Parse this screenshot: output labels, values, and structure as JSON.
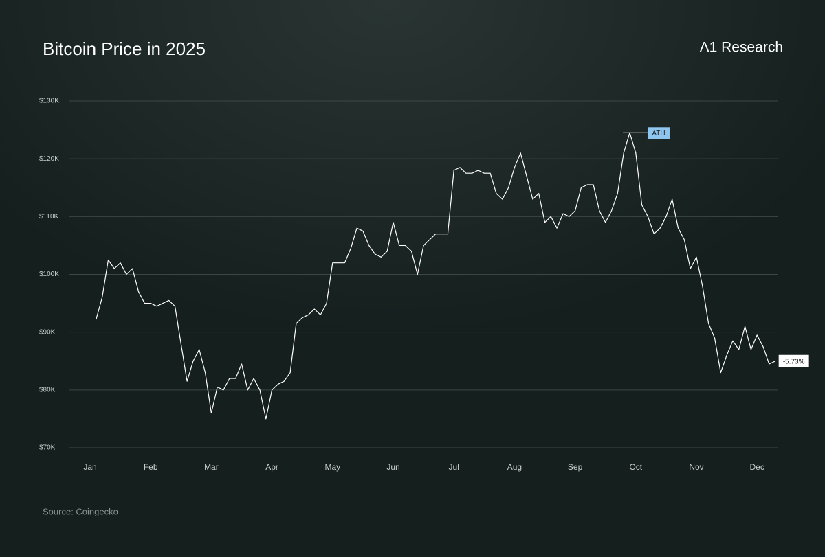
{
  "chart_data": {
    "type": "line",
    "title": "Bitcoin Price in 2025",
    "brand": "Λ1 Research",
    "source": "Source: Coingecko",
    "categories": [
      "Jan",
      null,
      null,
      null,
      null,
      null,
      null,
      null,
      null,
      null,
      "Feb",
      null,
      null,
      null,
      null,
      null,
      null,
      null,
      null,
      null,
      "Mar",
      null,
      null,
      null,
      null,
      null,
      null,
      null,
      null,
      null,
      "Apr",
      null,
      null,
      null,
      null,
      null,
      null,
      null,
      null,
      null,
      "May",
      null,
      null,
      null,
      null,
      null,
      null,
      null,
      null,
      null,
      "Jun",
      null,
      null,
      null,
      null,
      null,
      null,
      null,
      null,
      null,
      "Jul",
      null,
      null,
      null,
      null,
      null,
      null,
      null,
      null,
      null,
      "Aug",
      null,
      null,
      null,
      null,
      null,
      null,
      null,
      null,
      null,
      "Sep",
      null,
      null,
      null,
      null,
      null,
      null,
      null,
      null,
      null,
      "Oct",
      null,
      null,
      null,
      null,
      null,
      null,
      null,
      null,
      null,
      "Nov",
      null,
      null,
      null,
      null,
      null,
      null,
      null,
      null,
      null,
      "Dec",
      null,
      null,
      null
    ],
    "series": [
      {
        "name": "Bitcoin",
        "color": "#ffffff",
        "values": [
          null,
          92200,
          96000,
          102500,
          101000,
          102000,
          100000,
          101000,
          97000,
          95000,
          95000,
          94500,
          95000,
          95500,
          94500,
          88000,
          81500,
          85000,
          87000,
          83000,
          76000,
          80500,
          80000,
          82000,
          82000,
          84500,
          80000,
          82000,
          80000,
          75000,
          80000,
          81000,
          81500,
          83000,
          91500,
          92500,
          93000,
          94000,
          93000,
          95000,
          102000,
          102000,
          102000,
          104500,
          108000,
          107500,
          105000,
          103500,
          103000,
          104000,
          109000,
          105000,
          105000,
          104000,
          100000,
          105000,
          106000,
          107000,
          107000,
          107000,
          118000,
          118500,
          117500,
          117500,
          118000,
          117500,
          117500,
          114000,
          113000,
          115000,
          118500,
          121000,
          117000,
          113000,
          114000,
          109000,
          110000,
          108000,
          110500,
          110000,
          111000,
          115000,
          115500,
          115500,
          111000,
          109000,
          111000,
          114000,
          121000,
          124500,
          121000,
          112000,
          110000,
          107000,
          108000,
          110000,
          113000,
          108000,
          106000,
          101000,
          103000,
          98000,
          91500,
          89000,
          83000,
          86000,
          88500,
          87000,
          91000,
          87000,
          89500,
          87500,
          84500,
          85000
        ]
      }
    ],
    "annotations": {
      "ath": "ATH",
      "change": "-5.73%"
    },
    "ylim": [
      70000,
      130000
    ],
    "yticks": [
      {
        "value": 70000,
        "label": "$70K"
      },
      {
        "value": 80000,
        "label": "$80K"
      },
      {
        "value": 90000,
        "label": "$90K"
      },
      {
        "value": 100000,
        "label": "$100K"
      },
      {
        "value": 110000,
        "label": "$110K"
      },
      {
        "value": 120000,
        "label": "$120K"
      },
      {
        "value": 130000,
        "label": "$130K"
      }
    ],
    "grid": true
  }
}
